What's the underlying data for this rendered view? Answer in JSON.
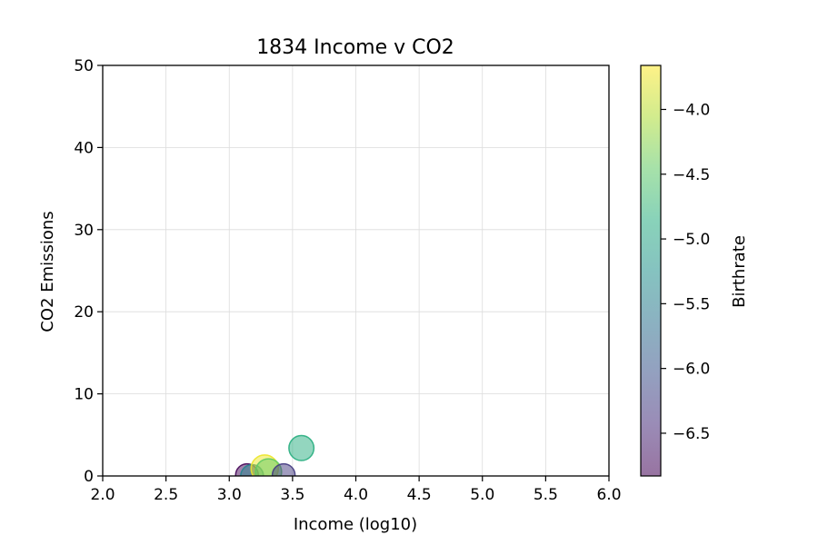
{
  "chart_data": {
    "type": "scatter",
    "title": "1834 Income v CO2",
    "xlabel": "Income (log10)",
    "ylabel": "CO2 Emissions",
    "xlim": [
      2.0,
      6.0
    ],
    "ylim": [
      0,
      50
    ],
    "x_ticks": [
      "2.0",
      "2.5",
      "3.0",
      "3.5",
      "4.0",
      "4.5",
      "5.0",
      "5.5",
      "6.0"
    ],
    "y_ticks": [
      "0",
      "10",
      "20",
      "30",
      "40",
      "50"
    ],
    "grid": true,
    "colorbar": {
      "label": "Birthrate",
      "range": [
        -6.83,
        -3.66
      ],
      "ticks": [
        "−4.0",
        "−4.5",
        "−5.0",
        "−5.5",
        "−6.0",
        "−6.5"
      ],
      "tick_values": [
        -4.0,
        -4.5,
        -5.0,
        -5.5,
        -6.0,
        -6.5
      ],
      "colormap": "viridis"
    },
    "points": [
      {
        "x": 3.14,
        "y": 0.1,
        "c": -6.8,
        "size": 1.0
      },
      {
        "x": 3.18,
        "y": 0.0,
        "c": -5.4,
        "size": 1.0
      },
      {
        "x": 3.28,
        "y": 0.9,
        "c": -3.75,
        "size": 1.2
      },
      {
        "x": 3.31,
        "y": 0.5,
        "c": -4.45,
        "size": 1.15
      },
      {
        "x": 3.43,
        "y": 0.1,
        "c": -6.3,
        "size": 1.0
      },
      {
        "x": 3.57,
        "y": 3.4,
        "c": -4.85,
        "size": 1.1
      }
    ]
  }
}
